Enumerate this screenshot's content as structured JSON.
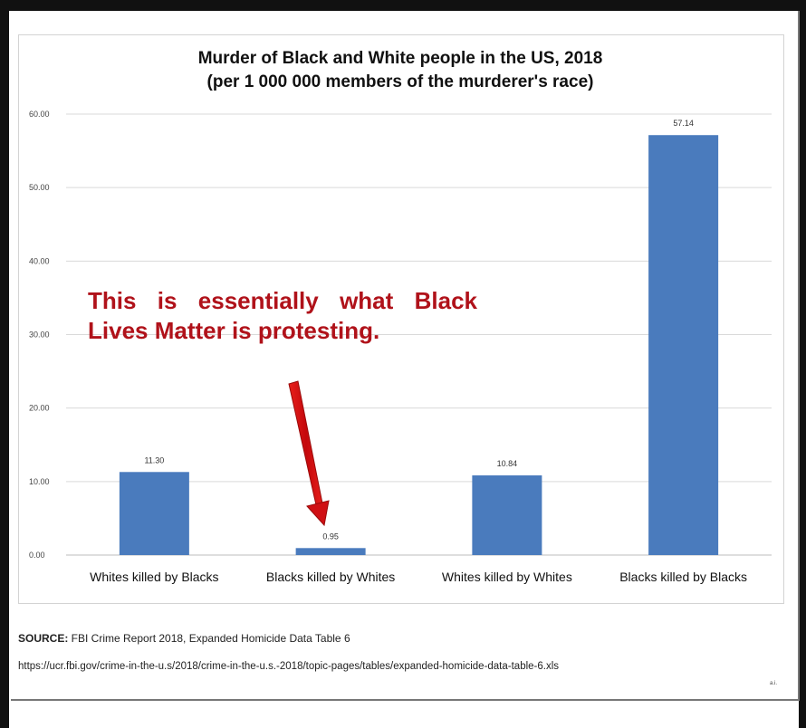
{
  "chart_data": {
    "type": "bar",
    "title": "Murder of Black and White people in the US, 2018",
    "subtitle": "(per 1 000 000 members of the murderer's race)",
    "categories": [
      "Whites killed by Blacks",
      "Blacks killed by Whites",
      "Whites killed by Whites",
      "Blacks killed by Blacks"
    ],
    "values": [
      11.3,
      0.95,
      10.84,
      57.14
    ],
    "data_labels": [
      "11.30",
      "0.95",
      "10.84",
      "57.14"
    ],
    "ylim": [
      0,
      60
    ],
    "yticks": [
      "0.00",
      "10.00",
      "20.00",
      "30.00",
      "40.00",
      "50.00",
      "60.00"
    ],
    "grid": true,
    "bar_color": "#4a7bbd",
    "annotation": {
      "text": "This is essentially what Black Lives Matter is protesting.",
      "color": "#b0121a",
      "points_to": "Blacks killed by Whites"
    }
  },
  "source": {
    "label": "SOURCE:",
    "text": " FBI Crime Report 2018, Expanded Homicide Data Table 6",
    "url": "https://ucr.fbi.gov/crime-in-the-u.s/2018/crime-in-the-u.s.-2018/topic-pages/tables/expanded-homicide-data-table-6.xls"
  },
  "corner_mark": "a.i."
}
